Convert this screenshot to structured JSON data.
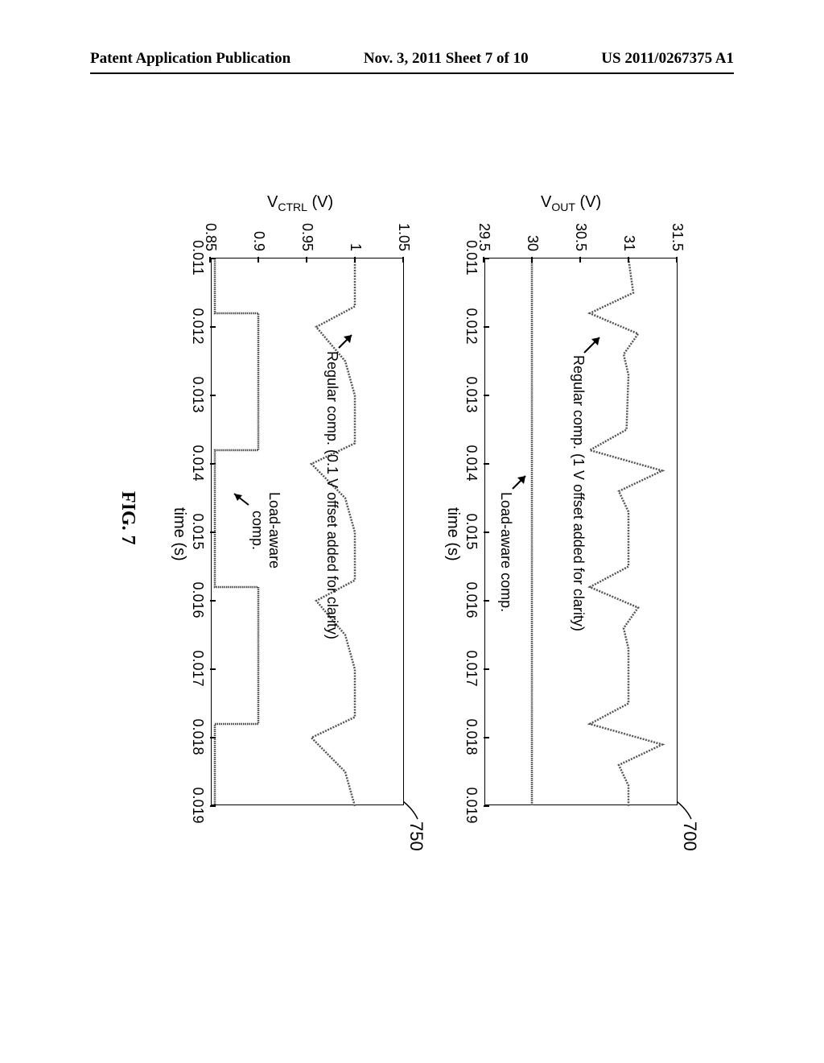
{
  "header": {
    "left": "Patent Application Publication",
    "center": "Nov. 3, 2011  Sheet 7 of 10",
    "right": "US 2011/0267375 A1"
  },
  "figure_caption": "FIG. 7",
  "ref_700": "700",
  "ref_750": "750",
  "chart_top": {
    "ylabel": "Vₒᴜᴛ (V)",
    "ylabel_plain": "VOUT (V)",
    "xlabel": "time (s)",
    "ylim": [
      29.5,
      31.5
    ],
    "yticks": [
      29.5,
      30,
      30.5,
      31,
      31.5
    ],
    "ytick_labels": [
      "29.5",
      "30",
      "30.5",
      "31",
      "31.5"
    ],
    "xlim": [
      0.011,
      0.019
    ],
    "xticks": [
      0.011,
      0.012,
      0.013,
      0.014,
      0.015,
      0.016,
      0.017,
      0.018,
      0.019
    ],
    "xtick_labels": [
      "0.011",
      "0.012",
      "0.013",
      "0.014",
      "0.015",
      "0.016",
      "0.017",
      "0.018",
      "0.019"
    ],
    "annotations": {
      "regular": "Regular comp. (1 V offset added for clarity)",
      "load_aware": "Load-aware comp."
    },
    "line_color": "#555555",
    "background": "#ffffff",
    "series_regular": [
      [
        0.011,
        31.0
      ],
      [
        0.0115,
        31.05
      ],
      [
        0.0118,
        30.6
      ],
      [
        0.0121,
        31.1
      ],
      [
        0.0124,
        30.95
      ],
      [
        0.0127,
        31.0
      ],
      [
        0.0135,
        30.98
      ],
      [
        0.0138,
        30.6
      ],
      [
        0.0141,
        31.35
      ],
      [
        0.0144,
        30.9
      ],
      [
        0.0147,
        31.0
      ],
      [
        0.0155,
        31.0
      ],
      [
        0.0158,
        30.6
      ],
      [
        0.0161,
        31.1
      ],
      [
        0.0164,
        30.95
      ],
      [
        0.0167,
        31.0
      ],
      [
        0.0175,
        31.0
      ],
      [
        0.0178,
        30.6
      ],
      [
        0.0181,
        31.35
      ],
      [
        0.0184,
        30.9
      ],
      [
        0.0187,
        31.0
      ],
      [
        0.019,
        31.0
      ]
    ],
    "series_load_aware": [
      [
        0.011,
        30.0
      ],
      [
        0.019,
        30.0
      ]
    ]
  },
  "chart_bottom": {
    "ylabel": "Vᴄᴛʀʟ (V)",
    "ylabel_plain": "VCTRL (V)",
    "xlabel": "time (s)",
    "ylim": [
      0.85,
      1.05
    ],
    "yticks": [
      0.85,
      0.9,
      0.95,
      1.0,
      1.05
    ],
    "ytick_labels": [
      "0.85",
      "0.9",
      "0.95",
      "1",
      "1.05"
    ],
    "xlim": [
      0.011,
      0.019
    ],
    "xticks": [
      0.011,
      0.012,
      0.013,
      0.014,
      0.015,
      0.016,
      0.017,
      0.018,
      0.019
    ],
    "xtick_labels": [
      "0.011",
      "0.012",
      "0.013",
      "0.014",
      "0.015",
      "0.016",
      "0.017",
      "0.018",
      "0.019"
    ],
    "annotations": {
      "regular": "Regular comp. (0.1 V offset added for clarity)",
      "load_aware_l1": "Load-aware",
      "load_aware_l2": "comp."
    },
    "line_color": "#555555",
    "background": "#ffffff",
    "series_regular": [
      [
        0.011,
        1.0
      ],
      [
        0.0117,
        1.0
      ],
      [
        0.012,
        0.96
      ],
      [
        0.0125,
        0.99
      ],
      [
        0.013,
        1.0
      ],
      [
        0.0137,
        1.0
      ],
      [
        0.014,
        0.955
      ],
      [
        0.0145,
        0.99
      ],
      [
        0.015,
        1.0
      ],
      [
        0.0157,
        1.0
      ],
      [
        0.016,
        0.96
      ],
      [
        0.0165,
        0.99
      ],
      [
        0.017,
        1.0
      ],
      [
        0.0177,
        1.0
      ],
      [
        0.018,
        0.955
      ],
      [
        0.0185,
        0.99
      ],
      [
        0.019,
        1.0
      ]
    ],
    "series_load_aware": [
      [
        0.011,
        0.855
      ],
      [
        0.0118,
        0.855
      ],
      [
        0.0118,
        0.9
      ],
      [
        0.0138,
        0.9
      ],
      [
        0.0138,
        0.855
      ],
      [
        0.0158,
        0.855
      ],
      [
        0.0158,
        0.9
      ],
      [
        0.0178,
        0.9
      ],
      [
        0.0178,
        0.855
      ],
      [
        0.019,
        0.855
      ]
    ]
  }
}
